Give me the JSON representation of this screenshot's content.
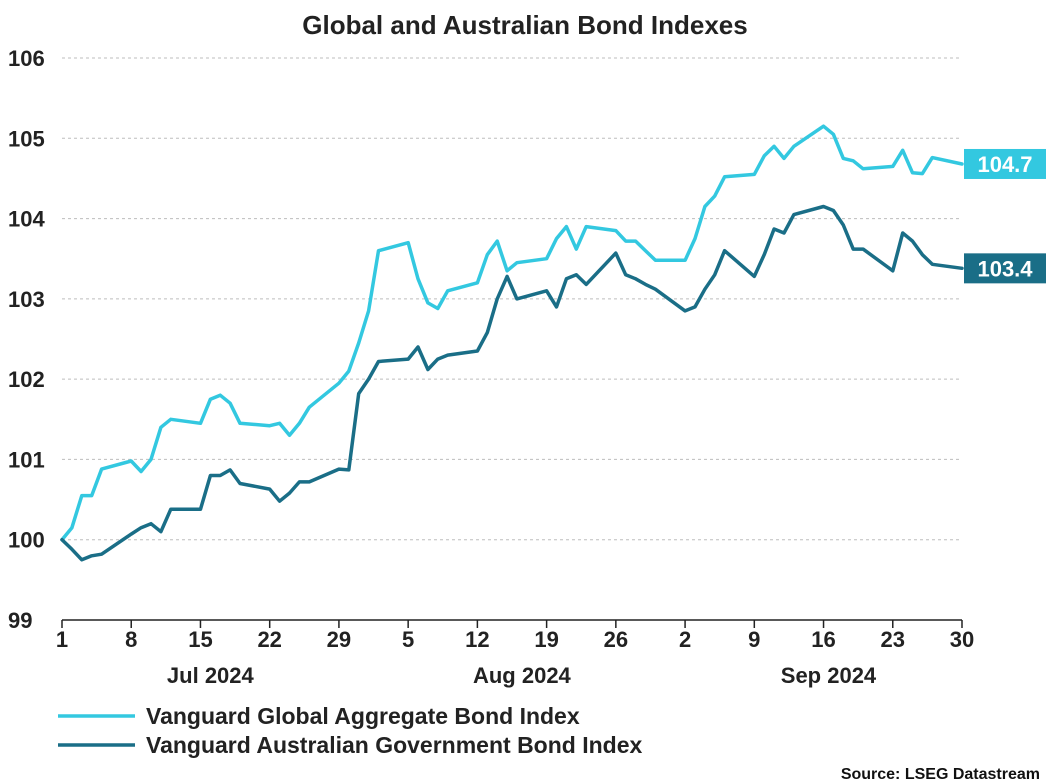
{
  "chart_data": {
    "type": "line",
    "title": "Global and Australian Bond Indexes",
    "ylim": [
      99,
      106
    ],
    "yticks": [
      99,
      100,
      101,
      102,
      103,
      104,
      105,
      106
    ],
    "xlim": [
      0,
      91
    ],
    "x_ticks": [
      {
        "x": 0,
        "label": "1"
      },
      {
        "x": 7,
        "label": "8"
      },
      {
        "x": 14,
        "label": "15"
      },
      {
        "x": 21,
        "label": "22"
      },
      {
        "x": 28,
        "label": "29"
      },
      {
        "x": 35,
        "label": "5"
      },
      {
        "x": 42,
        "label": "12"
      },
      {
        "x": 49,
        "label": "19"
      },
      {
        "x": 56,
        "label": "26"
      },
      {
        "x": 63,
        "label": "2"
      },
      {
        "x": 70,
        "label": "9"
      },
      {
        "x": 77,
        "label": "16"
      },
      {
        "x": 84,
        "label": "23"
      },
      {
        "x": 91,
        "label": "30"
      }
    ],
    "month_labels": [
      {
        "x": 15,
        "label": "Jul 2024"
      },
      {
        "x": 46.5,
        "label": "Aug 2024"
      },
      {
        "x": 77.5,
        "label": "Sep 2024"
      }
    ],
    "grid": "horizontal dashed",
    "series": [
      {
        "name": "Vanguard Global Aggregate Bond Index",
        "color": "#33c8e0",
        "end_label": "104.7",
        "x": [
          0,
          1,
          2,
          3,
          4,
          7,
          8,
          9,
          10,
          11,
          14,
          15,
          16,
          17,
          18,
          21,
          22,
          23,
          24,
          25,
          28,
          29,
          30,
          31,
          32,
          35,
          36,
          37,
          38,
          39,
          42,
          43,
          44,
          45,
          46,
          49,
          50,
          51,
          52,
          53,
          56,
          57,
          58,
          59,
          60,
          63,
          64,
          65,
          66,
          67,
          70,
          71,
          72,
          73,
          74,
          77,
          78,
          79,
          80,
          81,
          84,
          85,
          86,
          87,
          88,
          91
        ],
        "values": [
          100.0,
          100.15,
          100.55,
          100.55,
          100.88,
          100.98,
          100.85,
          101.0,
          101.4,
          101.5,
          101.45,
          101.75,
          101.8,
          101.7,
          101.45,
          101.42,
          101.45,
          101.3,
          101.45,
          101.65,
          101.95,
          102.1,
          102.45,
          102.85,
          103.6,
          103.7,
          103.25,
          102.95,
          102.88,
          103.1,
          103.2,
          103.55,
          103.72,
          103.35,
          103.45,
          103.5,
          103.75,
          103.9,
          103.62,
          103.9,
          103.85,
          103.72,
          103.72,
          103.6,
          103.48,
          103.48,
          103.75,
          104.15,
          104.28,
          104.52,
          104.55,
          104.78,
          104.9,
          104.75,
          104.9,
          105.15,
          105.05,
          104.75,
          104.72,
          104.62,
          104.65,
          104.85,
          104.57,
          104.56,
          104.76,
          104.68
        ]
      },
      {
        "name": "Vanguard Australian Government Bond Index",
        "color": "#1a6e87",
        "end_label": "103.4",
        "x": [
          0,
          1,
          2,
          3,
          4,
          7,
          8,
          9,
          10,
          11,
          14,
          15,
          16,
          17,
          18,
          21,
          22,
          23,
          24,
          25,
          28,
          29,
          30,
          31,
          32,
          35,
          36,
          37,
          38,
          39,
          42,
          43,
          44,
          45,
          46,
          49,
          50,
          51,
          52,
          53,
          56,
          57,
          58,
          59,
          60,
          63,
          64,
          65,
          66,
          67,
          70,
          71,
          72,
          73,
          74,
          77,
          78,
          79,
          80,
          81,
          84,
          85,
          86,
          87,
          88,
          91
        ],
        "values": [
          100.0,
          99.88,
          99.75,
          99.8,
          99.82,
          100.07,
          100.15,
          100.2,
          100.1,
          100.38,
          100.38,
          100.8,
          100.8,
          100.87,
          100.7,
          100.63,
          100.48,
          100.58,
          100.72,
          100.72,
          100.88,
          100.87,
          101.82,
          102.0,
          102.22,
          102.25,
          102.4,
          102.12,
          102.25,
          102.3,
          102.35,
          102.58,
          103.0,
          103.28,
          103.0,
          103.1,
          102.9,
          103.25,
          103.3,
          103.18,
          103.57,
          103.3,
          103.25,
          103.18,
          103.12,
          102.85,
          102.9,
          103.12,
          103.3,
          103.6,
          103.28,
          103.55,
          103.87,
          103.82,
          104.05,
          104.15,
          104.1,
          103.92,
          103.62,
          103.62,
          103.35,
          103.82,
          103.72,
          103.55,
          103.43,
          103.38
        ]
      }
    ],
    "legend": {
      "placement": "bottom-left"
    },
    "source": "Source: LSEG Datastream"
  }
}
